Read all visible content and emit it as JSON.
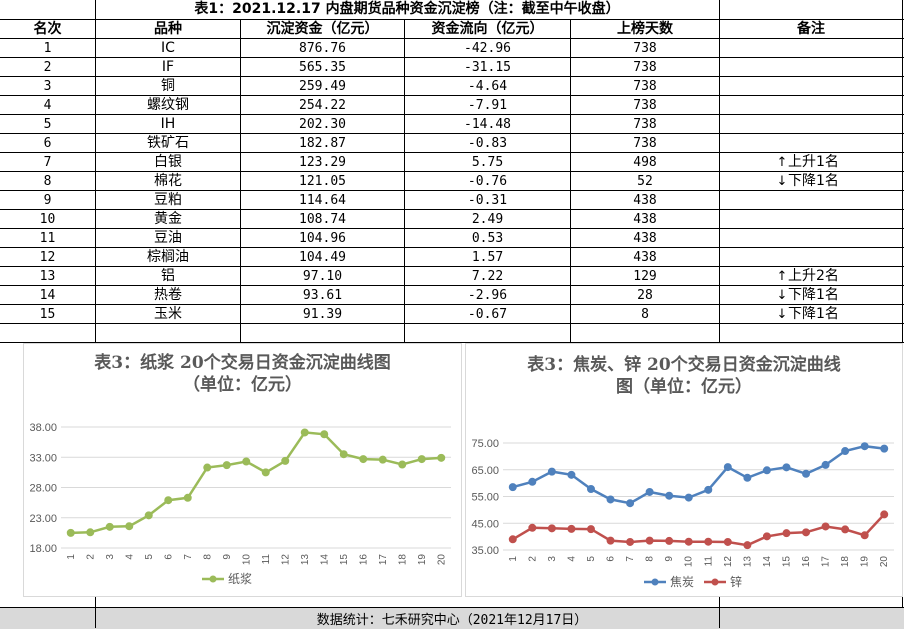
{
  "table": {
    "title": "表1：2021.12.17 内盘期货品种资金沉淀榜（注：截至中午收盘）",
    "headers": [
      "名次",
      "品种",
      "沉淀资金（亿元）",
      "资金流向（亿元）",
      "上榜天数",
      "备注"
    ],
    "rows": [
      {
        "rank": "1",
        "name": "IC",
        "capital": "876.76",
        "flow": "-42.96",
        "days": "738",
        "note": "",
        "dir": ""
      },
      {
        "rank": "2",
        "name": "IF",
        "capital": "565.35",
        "flow": "-31.15",
        "days": "738",
        "note": "",
        "dir": ""
      },
      {
        "rank": "3",
        "name": "铜",
        "capital": "259.49",
        "flow": "-4.64",
        "days": "738",
        "note": "",
        "dir": ""
      },
      {
        "rank": "4",
        "name": "螺纹钢",
        "capital": "254.22",
        "flow": "-7.91",
        "days": "738",
        "note": "",
        "dir": ""
      },
      {
        "rank": "5",
        "name": "IH",
        "capital": "202.30",
        "flow": "-14.48",
        "days": "738",
        "note": "",
        "dir": ""
      },
      {
        "rank": "6",
        "name": "铁矿石",
        "capital": "182.87",
        "flow": "-0.83",
        "days": "738",
        "note": "",
        "dir": ""
      },
      {
        "rank": "7",
        "name": "白银",
        "capital": "123.29",
        "flow": "5.75",
        "days": "498",
        "note": "上升1名",
        "dir": "up"
      },
      {
        "rank": "8",
        "name": "棉花",
        "capital": "121.05",
        "flow": "-0.76",
        "days": "52",
        "note": "下降1名",
        "dir": "down"
      },
      {
        "rank": "9",
        "name": "豆粕",
        "capital": "114.64",
        "flow": "-0.31",
        "days": "438",
        "note": "",
        "dir": ""
      },
      {
        "rank": "10",
        "name": "黄金",
        "capital": "108.74",
        "flow": "2.49",
        "days": "438",
        "note": "",
        "dir": ""
      },
      {
        "rank": "11",
        "name": "豆油",
        "capital": "104.96",
        "flow": "0.53",
        "days": "438",
        "note": "",
        "dir": ""
      },
      {
        "rank": "12",
        "name": "棕榈油",
        "capital": "104.49",
        "flow": "1.57",
        "days": "438",
        "note": "",
        "dir": ""
      },
      {
        "rank": "13",
        "name": "铝",
        "capital": "97.10",
        "flow": "7.22",
        "days": "129",
        "note": "上升2名",
        "dir": "up"
      },
      {
        "rank": "14",
        "name": "热卷",
        "capital": "93.61",
        "flow": "-2.96",
        "days": "28",
        "note": "下降1名",
        "dir": "down"
      },
      {
        "rank": "15",
        "name": "玉米",
        "capital": "91.39",
        "flow": "-0.67",
        "days": "8",
        "note": "下降1名",
        "dir": "down"
      }
    ]
  },
  "chart_data": [
    {
      "type": "line",
      "title": "表3：纸浆 20个交易日资金沉淀曲线图（单位：亿元）",
      "title_lines": [
        "表3：纸浆 20个交易日资金沉淀曲线图",
        "（单位：亿元）"
      ],
      "x": [
        "1",
        "2",
        "3",
        "4",
        "5",
        "6",
        "7",
        "8",
        "9",
        "10",
        "11",
        "12",
        "13",
        "14",
        "15",
        "16",
        "17",
        "18",
        "19",
        "20"
      ],
      "yticks": [
        "18.00",
        "23.00",
        "28.00",
        "33.00",
        "38.00"
      ],
      "ylim": [
        18,
        38
      ],
      "grid": true,
      "legend_position": "bottom",
      "series": [
        {
          "name": "纸浆",
          "color": "#9bbb59",
          "values": [
            20.5,
            20.6,
            21.5,
            21.6,
            23.4,
            25.9,
            26.3,
            31.3,
            31.7,
            32.3,
            30.5,
            32.4,
            37.1,
            36.8,
            33.5,
            32.7,
            32.6,
            31.8,
            32.7,
            32.9
          ]
        }
      ]
    },
    {
      "type": "line",
      "title": "表3：焦炭、锌 20个交易日资金沉淀曲线图（单位：亿元）",
      "title_lines": [
        "表3：焦炭、锌 20个交易日资金沉淀曲线",
        "图（单位：亿元）"
      ],
      "x": [
        "1",
        "2",
        "3",
        "4",
        "5",
        "6",
        "7",
        "8",
        "9",
        "10",
        "11",
        "12",
        "13",
        "14",
        "15",
        "16",
        "17",
        "18",
        "19",
        "20"
      ],
      "yticks": [
        "35.00",
        "45.00",
        "55.00",
        "65.00",
        "75.00"
      ],
      "ylim": [
        35,
        75
      ],
      "grid": true,
      "legend_position": "bottom",
      "series": [
        {
          "name": "焦炭",
          "color": "#4f81bd",
          "values": [
            58.5,
            60.5,
            64.3,
            63.1,
            57.8,
            53.9,
            52.5,
            56.7,
            55.3,
            54.6,
            57.5,
            66.0,
            62.0,
            64.8,
            65.9,
            63.5,
            66.8,
            72.0,
            73.8,
            72.9
          ]
        },
        {
          "name": "锌",
          "color": "#c0504d",
          "values": [
            39.0,
            43.3,
            43.1,
            42.9,
            42.8,
            38.5,
            38.0,
            38.5,
            38.4,
            38.1,
            38.1,
            38.0,
            36.8,
            40.1,
            41.3,
            41.6,
            43.8,
            42.7,
            40.5,
            48.3
          ]
        }
      ]
    }
  ],
  "footer": {
    "text": "数据统计：七禾研究中心（2021年12月17日）"
  }
}
